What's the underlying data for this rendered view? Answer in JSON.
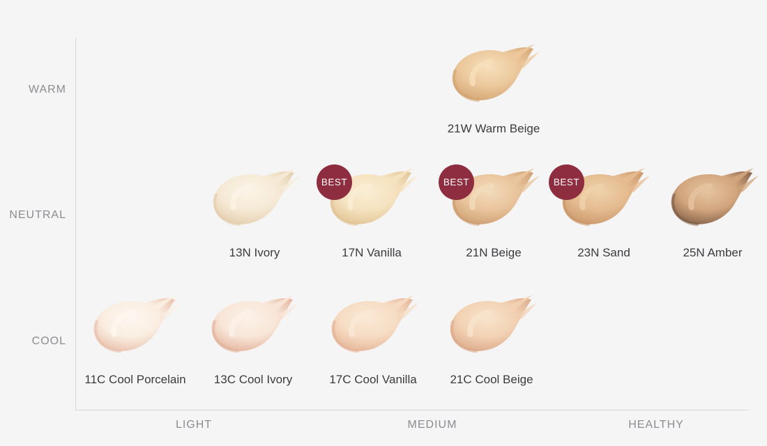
{
  "chart": {
    "y_axis_labels": [
      "WARM",
      "NEUTRAL",
      "COOL"
    ],
    "x_axis_labels": [
      "LIGHT",
      "MEDIUM",
      "HEALTHY"
    ],
    "badge_label": "BEST",
    "badge_color": "#8e2d3f",
    "background_color": "#f5f5f6",
    "axis_line_color": "#d8d8da",
    "rows": [
      {
        "tone": "WARM",
        "items": [
          {
            "code": "21W",
            "name": "Warm Beige",
            "label": "21W Warm Beige",
            "best": false,
            "colors": {
              "body": "#ecc89c",
              "edge": "#d0a26f",
              "highlight": "#f6e0bb"
            }
          }
        ]
      },
      {
        "tone": "NEUTRAL",
        "items": [
          {
            "code": "13N",
            "name": "Ivory",
            "label": "13N Ivory",
            "best": false,
            "colors": {
              "body": "#f6ead6",
              "edge": "#e2cba9",
              "highlight": "#fbf4e6"
            }
          },
          {
            "code": "17N",
            "name": "Vanilla",
            "label": "17N Vanilla",
            "best": true,
            "colors": {
              "body": "#f5e2bf",
              "edge": "#e0c192",
              "highlight": "#faeed4"
            }
          },
          {
            "code": "21N",
            "name": "Beige",
            "label": "21N Beige",
            "best": true,
            "colors": {
              "body": "#e9c49c",
              "edge": "#cb9b6e",
              "highlight": "#f3dcbc"
            }
          },
          {
            "code": "23N",
            "name": "Sand",
            "label": "23N Sand",
            "best": true,
            "colors": {
              "body": "#e5bb90",
              "edge": "#c79465",
              "highlight": "#efd2ab"
            }
          },
          {
            "code": "25N",
            "name": "Amber",
            "label": "25N Amber",
            "best": false,
            "colors": {
              "body": "#d2a67e",
              "edge": "#7c5a43",
              "highlight": "#e6c4a0"
            }
          }
        ]
      },
      {
        "tone": "COOL",
        "items": [
          {
            "code": "11C",
            "name": "Cool Porcelain",
            "label": "11C Cool Porcelain",
            "best": false,
            "colors": {
              "body": "#faeee1",
              "edge": "#e8bca6",
              "highlight": "#fdf7f0"
            }
          },
          {
            "code": "13C",
            "name": "Cool Ivory",
            "label": "13C Cool Ivory",
            "best": false,
            "colors": {
              "body": "#f8e6d8",
              "edge": "#e2ae97",
              "highlight": "#fcf1e8"
            }
          },
          {
            "code": "17C",
            "name": "Cool Vanilla",
            "label": "17C Cool Vanilla",
            "best": false,
            "colors": {
              "body": "#f6dcc3",
              "edge": "#e4b092",
              "highlight": "#fae9d6"
            }
          },
          {
            "code": "21C",
            "name": "Cool Beige",
            "label": "21C Cool Beige",
            "best": false,
            "colors": {
              "body": "#f2d2b3",
              "edge": "#d9a585",
              "highlight": "#f8e4cc"
            }
          }
        ]
      }
    ]
  },
  "chart_data": {
    "type": "scatter",
    "title": "",
    "x_axis": {
      "labels": [
        "LIGHT",
        "MEDIUM",
        "HEALTHY"
      ],
      "range": [
        0,
        1
      ]
    },
    "y_axis": {
      "labels": [
        "WARM",
        "NEUTRAL",
        "COOL"
      ]
    },
    "legend": "none",
    "grid": false,
    "points": [
      {
        "label": "21W Warm Beige",
        "code": "21W",
        "tone": "WARM",
        "x": 0.62,
        "best": false,
        "swatch_color": "#ecc89c"
      },
      {
        "label": "13N Ivory",
        "code": "13N",
        "tone": "NEUTRAL",
        "x": 0.27,
        "best": false,
        "swatch_color": "#f6ead6"
      },
      {
        "label": "17N Vanilla",
        "code": "17N",
        "tone": "NEUTRAL",
        "x": 0.44,
        "best": true,
        "swatch_color": "#f5e2bf"
      },
      {
        "label": "21N Beige",
        "code": "21N",
        "tone": "NEUTRAL",
        "x": 0.62,
        "best": true,
        "swatch_color": "#e9c49c"
      },
      {
        "label": "23N Sand",
        "code": "23N",
        "tone": "NEUTRAL",
        "x": 0.79,
        "best": true,
        "swatch_color": "#e5bb90"
      },
      {
        "label": "25N Amber",
        "code": "25N",
        "tone": "NEUTRAL",
        "x": 0.95,
        "best": false,
        "swatch_color": "#d2a67e"
      },
      {
        "label": "11C Cool Porcelain",
        "code": "11C",
        "tone": "COOL",
        "x": 0.09,
        "best": false,
        "swatch_color": "#faeee1"
      },
      {
        "label": "13C Cool Ivory",
        "code": "13C",
        "tone": "COOL",
        "x": 0.27,
        "best": false,
        "swatch_color": "#f8e6d8"
      },
      {
        "label": "17C Cool Vanilla",
        "code": "17C",
        "tone": "COOL",
        "x": 0.44,
        "best": false,
        "swatch_color": "#f6dcc3"
      },
      {
        "label": "21C Cool Beige",
        "code": "21C",
        "tone": "COOL",
        "x": 0.62,
        "best": false,
        "swatch_color": "#f2d2b3"
      }
    ]
  }
}
